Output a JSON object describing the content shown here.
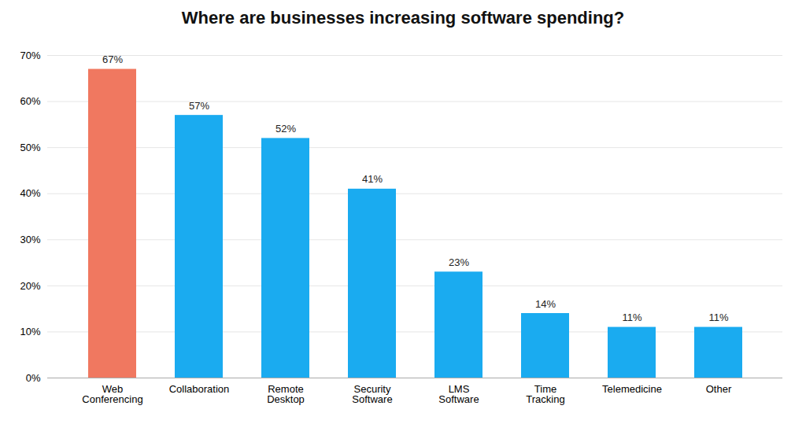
{
  "chart_data": {
    "type": "bar",
    "title": "Where are businesses increasing software spending?",
    "categories": [
      "Web\nConferencing",
      "Collaboration",
      "Remote\nDesktop",
      "Security\nSoftware",
      "LMS\nSoftware",
      "Time\nTracking",
      "Telemedicine",
      "Other"
    ],
    "values": [
      67,
      57,
      52,
      41,
      23,
      14,
      11,
      11
    ],
    "value_labels": [
      "67%",
      "57%",
      "52%",
      "41%",
      "23%",
      "14%",
      "11%",
      "11%"
    ],
    "data_labels": true,
    "colors": [
      "#F07860",
      "#1AABF0",
      "#1AABF0",
      "#1AABF0",
      "#1AABF0",
      "#1AABF0",
      "#1AABF0",
      "#1AABF0"
    ],
    "ylim": [
      0,
      70
    ],
    "yticks": [
      {
        "value": 0,
        "label": "0%"
      },
      {
        "value": 10,
        "label": "10%"
      },
      {
        "value": 20,
        "label": "20%"
      },
      {
        "value": 30,
        "label": "30%"
      },
      {
        "value": 40,
        "label": "40%"
      },
      {
        "value": 50,
        "label": "50%"
      },
      {
        "value": 60,
        "label": "60%"
      },
      {
        "value": 70,
        "label": "70%"
      }
    ],
    "grid": true
  }
}
